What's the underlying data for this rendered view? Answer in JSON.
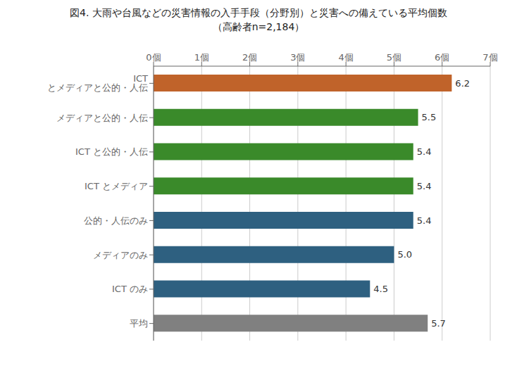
{
  "chart_data": {
    "type": "bar",
    "orientation": "horizontal",
    "title": "図4. 大雨や台風などの災害情報の入手手段（分野別）と災害への備えている平均個数",
    "subtitle": "（高齢者n=2,184）",
    "categories": [
      "ICT とメディアと公的・人伝",
      "メディアと公的・人伝",
      "ICT と公的・人伝",
      "ICT とメディア",
      "公的・人伝のみ",
      "メディアのみ",
      "ICT のみ",
      "平均"
    ],
    "values": [
      6.2,
      5.5,
      5.4,
      5.4,
      5.4,
      5.0,
      4.5,
      5.7
    ],
    "value_labels": [
      "6.2",
      "5.5",
      "5.4",
      "5.4",
      "5.4",
      "5.0",
      "4.5",
      "5.7"
    ],
    "data_labels": true,
    "colors": [
      "#c0632a",
      "#3a8a2a",
      "#3a8a2a",
      "#3a8a2a",
      "#2e6080",
      "#2e6080",
      "#2e6080",
      "#808080"
    ],
    "xlim": [
      0,
      7
    ],
    "xticks": [
      {
        "value": 0,
        "label": "0個"
      },
      {
        "value": 1,
        "label": "1個"
      },
      {
        "value": 2,
        "label": "2個"
      },
      {
        "value": 3,
        "label": "3個"
      },
      {
        "value": 4,
        "label": "4個"
      },
      {
        "value": 5,
        "label": "5個"
      },
      {
        "value": 6,
        "label": "6個"
      },
      {
        "value": 7,
        "label": "7個"
      }
    ],
    "grid": true
  }
}
